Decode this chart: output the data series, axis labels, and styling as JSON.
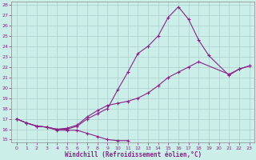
{
  "bg_color": "#cceee8",
  "grid_color": "#aacccc",
  "line_color": "#882288",
  "xlabel": "Windchill (Refroidissement éolien,°C)",
  "xlim": [
    -0.5,
    23.5
  ],
  "ylim": [
    14.7,
    28.3
  ],
  "xticks": [
    0,
    1,
    2,
    3,
    4,
    5,
    6,
    7,
    8,
    9,
    10,
    11,
    12,
    13,
    14,
    15,
    16,
    17,
    18,
    19,
    20,
    21,
    22,
    23
  ],
  "yticks": [
    15,
    16,
    17,
    18,
    19,
    20,
    21,
    22,
    23,
    24,
    25,
    26,
    27,
    28
  ],
  "line1_x": [
    0,
    1,
    2,
    3,
    4,
    5,
    6,
    7,
    8,
    9,
    10,
    11
  ],
  "line1_y": [
    17.0,
    16.6,
    16.3,
    16.2,
    15.9,
    15.9,
    15.9,
    15.6,
    15.3,
    15.0,
    14.9,
    14.9
  ],
  "line2_x": [
    0,
    1,
    2,
    3,
    4,
    5,
    6,
    7,
    8,
    9,
    10,
    11,
    12,
    13,
    14,
    15,
    16,
    17,
    18,
    19,
    21,
    22,
    23
  ],
  "line2_y": [
    17.0,
    16.6,
    16.3,
    16.2,
    16.0,
    16.0,
    16.3,
    17.0,
    17.5,
    18.0,
    19.8,
    21.5,
    23.3,
    24.0,
    25.0,
    26.8,
    27.8,
    26.6,
    24.6,
    23.1,
    21.2,
    21.8,
    22.1
  ],
  "line3_x": [
    0,
    1,
    2,
    3,
    4,
    5,
    6,
    7,
    8,
    9,
    10,
    11,
    12,
    13,
    14,
    15,
    16,
    17,
    18,
    21,
    22,
    23
  ],
  "line3_y": [
    17.0,
    16.6,
    16.3,
    16.2,
    16.0,
    16.1,
    16.4,
    17.2,
    17.8,
    18.3,
    18.5,
    18.7,
    19.0,
    19.5,
    20.2,
    21.0,
    21.5,
    22.0,
    22.5,
    21.3,
    21.8,
    22.1
  ]
}
